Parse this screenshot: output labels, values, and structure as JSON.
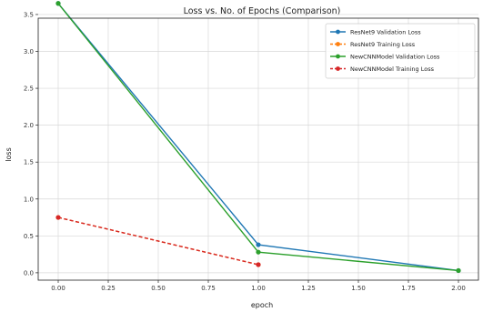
{
  "chart_data": {
    "type": "line",
    "title": "Loss vs. No. of Epochs (Comparison)",
    "xlabel": "epoch",
    "ylabel": "loss",
    "xlim": [
      -0.1,
      2.1
    ],
    "ylim": [
      -0.1,
      3.45
    ],
    "xticks": [
      "0.00",
      "0.25",
      "0.50",
      "0.75",
      "1.00",
      "1.25",
      "1.50",
      "1.75",
      "2.00"
    ],
    "yticks": [
      "0.0",
      "0.5",
      "1.0",
      "1.5",
      "2.0",
      "2.5",
      "3.0",
      "3.5"
    ],
    "grid": true,
    "legend_position": "top-right",
    "series": [
      {
        "name": "ResNet9 Validation Loss",
        "x": [
          0,
          1,
          2
        ],
        "values": [
          3.65,
          0.38,
          0.03
        ],
        "color": "#1f77b4",
        "linestyle": "solid",
        "marker": "circle"
      },
      {
        "name": "ResNet9 Training Loss",
        "x": [
          0,
          1
        ],
        "values": [
          0.75,
          0.11
        ],
        "color": "#ff7f0e",
        "linestyle": "dashed",
        "marker": "circle"
      },
      {
        "name": "NewCNNModel Validation Loss",
        "x": [
          0,
          1,
          2
        ],
        "values": [
          3.65,
          0.28,
          0.03
        ],
        "color": "#2ca02c",
        "linestyle": "solid",
        "marker": "circle"
      },
      {
        "name": "NewCNNModel Training Loss",
        "x": [
          0,
          1
        ],
        "values": [
          0.75,
          0.11
        ],
        "color": "#d62728",
        "linestyle": "dashed",
        "marker": "circle"
      }
    ]
  }
}
